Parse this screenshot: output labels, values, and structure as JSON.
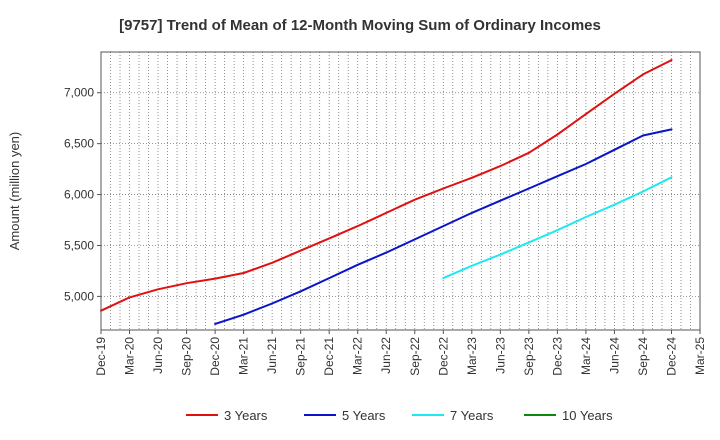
{
  "chart_data": {
    "type": "line",
    "title": "[9757]  Trend of Mean of 12-Month Moving Sum of Ordinary Incomes",
    "xlabel": "",
    "ylabel": "Amount (million yen)",
    "ylim": [
      4670,
      7400
    ],
    "yticks": [
      5000,
      5500,
      6000,
      6500,
      7000
    ],
    "ytick_labels": [
      "5,000",
      "5,500",
      "6,000",
      "6,500",
      "7,000"
    ],
    "x_start": "Dec-19",
    "x_months": 63,
    "xtick_labels": [
      "Dec-19",
      "Mar-20",
      "Jun-20",
      "Sep-20",
      "Dec-20",
      "Mar-21",
      "Jun-21",
      "Sep-21",
      "Dec-21",
      "Mar-22",
      "Jun-22",
      "Sep-22",
      "Dec-22",
      "Mar-23",
      "Jun-23",
      "Sep-23",
      "Dec-23",
      "Mar-24",
      "Jun-24",
      "Sep-24",
      "Dec-24",
      "Mar-25"
    ],
    "legend_position": "bottom",
    "grid": true,
    "series": [
      {
        "name": "3 Years",
        "color": "#e01010",
        "points": [
          [
            0,
            4860
          ],
          [
            3,
            4990
          ],
          [
            6,
            5070
          ],
          [
            9,
            5130
          ],
          [
            12,
            5175
          ],
          [
            15,
            5230
          ],
          [
            18,
            5330
          ],
          [
            21,
            5450
          ],
          [
            24,
            5570
          ],
          [
            27,
            5690
          ],
          [
            30,
            5820
          ],
          [
            33,
            5950
          ],
          [
            36,
            6060
          ],
          [
            39,
            6165
          ],
          [
            42,
            6280
          ],
          [
            45,
            6410
          ],
          [
            48,
            6590
          ],
          [
            51,
            6790
          ],
          [
            54,
            6990
          ],
          [
            57,
            7180
          ],
          [
            60,
            7320
          ]
        ]
      },
      {
        "name": "5 Years",
        "color": "#0a14c8",
        "points": [
          [
            12,
            4730
          ],
          [
            15,
            4820
          ],
          [
            18,
            4930
          ],
          [
            21,
            5050
          ],
          [
            24,
            5180
          ],
          [
            27,
            5310
          ],
          [
            30,
            5430
          ],
          [
            33,
            5560
          ],
          [
            36,
            5690
          ],
          [
            39,
            5820
          ],
          [
            42,
            5940
          ],
          [
            45,
            6060
          ],
          [
            48,
            6180
          ],
          [
            51,
            6300
          ],
          [
            54,
            6440
          ],
          [
            57,
            6580
          ],
          [
            60,
            6640
          ]
        ]
      },
      {
        "name": "7 Years",
        "color": "#20e8f0",
        "points": [
          [
            36,
            5180
          ],
          [
            39,
            5300
          ],
          [
            42,
            5410
          ],
          [
            45,
            5530
          ],
          [
            48,
            5650
          ],
          [
            51,
            5780
          ],
          [
            54,
            5900
          ],
          [
            57,
            6030
          ],
          [
            60,
            6170
          ]
        ]
      },
      {
        "name": "10 Years",
        "color": "#0a8a0a",
        "points": []
      }
    ]
  }
}
